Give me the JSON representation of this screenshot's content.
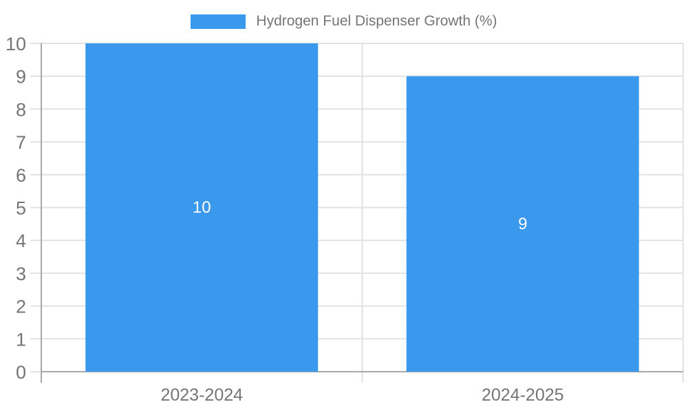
{
  "chart_data": {
    "type": "bar",
    "title": "Hydrogen Fuel Dispenser Growth (%)",
    "categories": [
      "2023-2024",
      "2024-2025"
    ],
    "series": [
      {
        "name": "Hydrogen Fuel Dispenser Growth (%)",
        "values": [
          10,
          9
        ]
      }
    ],
    "bar_value_labels": [
      "10",
      "9"
    ],
    "xlabel": "",
    "ylabel": "",
    "ylim": [
      0,
      10
    ],
    "yticks": [
      0,
      1,
      2,
      3,
      4,
      5,
      6,
      7,
      8,
      9,
      10
    ],
    "grid": "horizontal-and-category-dividers",
    "legend_position": "top-center",
    "bar_color": "#3a99ec",
    "bar_label_color": "#ffffff",
    "axis_text_color": "#757575",
    "grid_color": "#e2e2e2",
    "axis_line_color": "#a8a8a8"
  }
}
